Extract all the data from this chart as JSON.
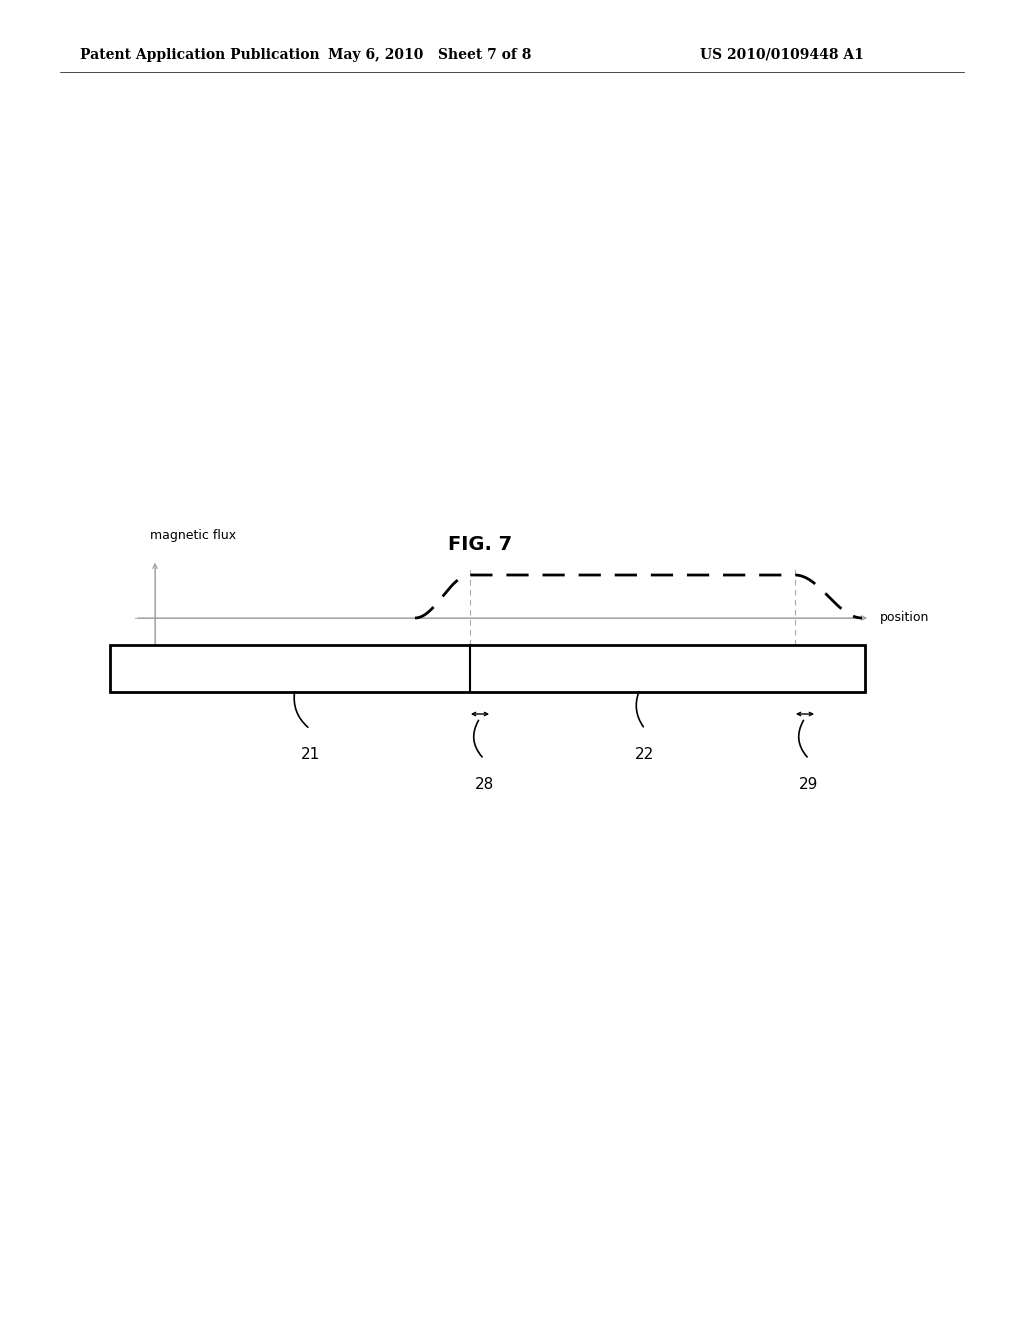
{
  "bg_color": "#ffffff",
  "header_left": "Patent Application Publication",
  "header_mid": "May 6, 2010   Sheet 7 of 8",
  "header_right": "US 2010/0109448 A1",
  "fig_label": "FIG. 7",
  "ylabel": "magnetic flux",
  "xlabel": "position",
  "label_21": "21",
  "label_22": "22",
  "label_28": "28",
  "label_29": "29"
}
